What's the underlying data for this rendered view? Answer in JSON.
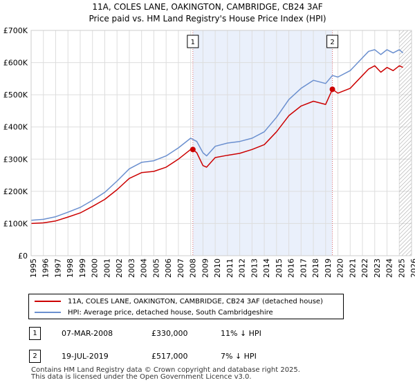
{
  "chart_data": {
    "type": "line",
    "title": "11A, COLES LANE, OAKINGTON, CAMBRIDGE, CB24 3AF",
    "subtitle": "Price paid vs. HM Land Registry's House Price Index (HPI)",
    "xlabel": "",
    "ylabel": "",
    "xlim": [
      1995,
      2026
    ],
    "ylim": [
      0,
      700000
    ],
    "x_ticks": [
      1995,
      1996,
      1997,
      1998,
      1999,
      2000,
      2001,
      2002,
      2003,
      2004,
      2005,
      2006,
      2007,
      2008,
      2009,
      2010,
      2011,
      2012,
      2013,
      2014,
      2015,
      2016,
      2017,
      2018,
      2019,
      2020,
      2021,
      2022,
      2023,
      2024,
      2025,
      2026
    ],
    "y_ticks": [
      {
        "value": 0,
        "label": "£0"
      },
      {
        "value": 100000,
        "label": "£100K"
      },
      {
        "value": 200000,
        "label": "£200K"
      },
      {
        "value": 300000,
        "label": "£300K"
      },
      {
        "value": 400000,
        "label": "£400K"
      },
      {
        "value": 500000,
        "label": "£500K"
      },
      {
        "value": 600000,
        "label": "£600K"
      },
      {
        "value": 700000,
        "label": "£700K"
      }
    ],
    "grid": true,
    "shaded_region": {
      "from": 2008.18,
      "to": 2019.55
    },
    "projection_from": 2025.0,
    "series": [
      {
        "name": "11A, COLES LANE, OAKINGTON, CAMBRIDGE, CB24 3AF (detached house)",
        "color": "#cc0000",
        "x": [
          1995.0,
          1996.0,
          1997.0,
          1998.0,
          1999.0,
          2000.0,
          2001.0,
          2002.0,
          2003.0,
          2004.0,
          2005.0,
          2006.0,
          2007.0,
          2008.0,
          2008.18,
          2008.5,
          2009.0,
          2009.3,
          2010.0,
          2011.0,
          2012.0,
          2013.0,
          2014.0,
          2015.0,
          2016.0,
          2017.0,
          2018.0,
          2019.0,
          2019.55,
          2020.0,
          2021.0,
          2022.0,
          2022.5,
          2023.0,
          2023.5,
          2024.0,
          2024.5,
          2025.0,
          2025.3
        ],
        "values": [
          100000,
          102000,
          108000,
          120000,
          133000,
          153000,
          175000,
          205000,
          240000,
          258000,
          262000,
          275000,
          300000,
          330000,
          330000,
          320000,
          280000,
          275000,
          305000,
          312000,
          318000,
          330000,
          345000,
          385000,
          435000,
          465000,
          480000,
          470000,
          517000,
          505000,
          520000,
          560000,
          580000,
          590000,
          570000,
          585000,
          575000,
          590000,
          585000
        ]
      },
      {
        "name": "HPI: Average price, detached house, South Cambridgeshire",
        "color": "#6a8fcf",
        "x": [
          1995.0,
          1996.0,
          1997.0,
          1998.0,
          1999.0,
          2000.0,
          2001.0,
          2002.0,
          2003.0,
          2004.0,
          2005.0,
          2006.0,
          2007.0,
          2008.0,
          2008.5,
          2009.0,
          2009.3,
          2010.0,
          2011.0,
          2012.0,
          2013.0,
          2014.0,
          2015.0,
          2016.0,
          2017.0,
          2018.0,
          2019.0,
          2019.55,
          2020.0,
          2021.0,
          2022.0,
          2022.5,
          2023.0,
          2023.5,
          2024.0,
          2024.5,
          2025.0,
          2025.3
        ],
        "values": [
          110000,
          113000,
          121000,
          135000,
          150000,
          172000,
          197000,
          232000,
          270000,
          290000,
          295000,
          310000,
          335000,
          365000,
          355000,
          320000,
          310000,
          340000,
          350000,
          355000,
          365000,
          385000,
          430000,
          485000,
          520000,
          545000,
          535000,
          560000,
          555000,
          575000,
          615000,
          635000,
          640000,
          625000,
          640000,
          630000,
          640000,
          630000
        ]
      }
    ],
    "annotations": [
      {
        "label": "1",
        "x": 2008.18,
        "y": 330000
      },
      {
        "label": "2",
        "x": 2019.55,
        "y": 517000
      }
    ]
  },
  "legend": [
    {
      "label": "11A, COLES LANE, OAKINGTON, CAMBRIDGE, CB24 3AF (detached house)",
      "color": "#cc0000"
    },
    {
      "label": "HPI: Average price, detached house, South Cambridgeshire",
      "color": "#6a8fcf"
    }
  ],
  "sales": [
    {
      "marker": "1",
      "date": "07-MAR-2008",
      "price": "£330,000",
      "hpi": "11% ↓ HPI"
    },
    {
      "marker": "2",
      "date": "19-JUL-2019",
      "price": "£517,000",
      "hpi": "7% ↓ HPI"
    }
  ],
  "footer": {
    "line1": "Contains HM Land Registry data © Crown copyright and database right 2025.",
    "line2": "This data is licensed under the Open Government Licence v3.0."
  }
}
